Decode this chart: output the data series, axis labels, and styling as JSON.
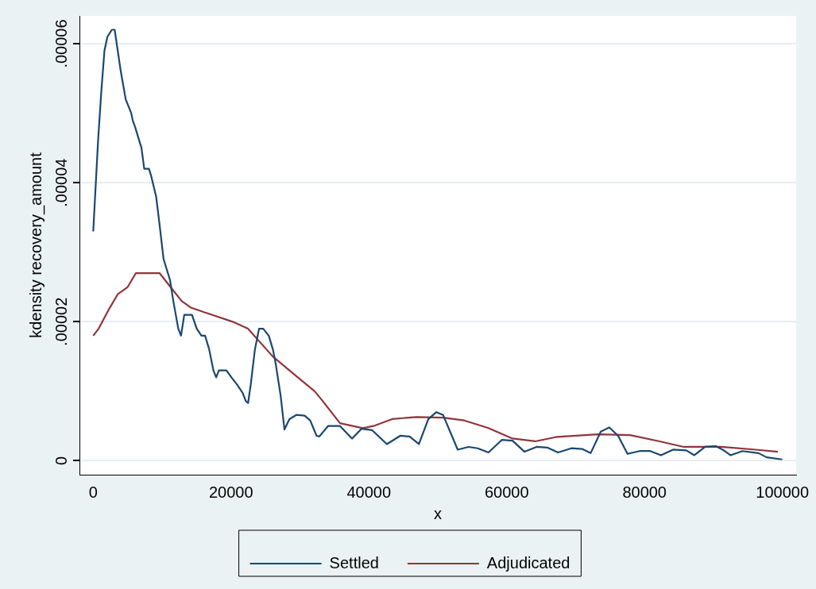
{
  "chart_data": {
    "type": "line",
    "xlabel": "x",
    "ylabel": "kdensity recovery_amount",
    "xlim": [
      -2000,
      102000
    ],
    "xticks": [
      0,
      20000,
      40000,
      60000,
      80000,
      100000
    ],
    "ylim": [
      -2e-06,
      6.4e-05
    ],
    "yticks": [
      0,
      {
        "value": 2e-05,
        "label": ".00002"
      },
      {
        "value": 4e-05,
        "label": ".00004"
      },
      {
        "value": 6e-05,
        "label": ".00006"
      }
    ],
    "grid": "y",
    "legend": "bottom",
    "marker": "none",
    "line_style": "solid",
    "series": [
      {
        "name": "Settled",
        "color": "#1a476f",
        "x": [
          0,
          700,
          1160,
          1630,
          2060,
          2700,
          3110,
          4000,
          4710,
          5520,
          5720,
          6080,
          7000,
          7400,
          7680,
          8080,
          8400,
          9130,
          9620,
          10210,
          11140,
          11620,
          12340,
          12740,
          13210,
          13940,
          14330,
          15020,
          15700,
          16230,
          16830,
          17440,
          17840,
          18240,
          18920,
          19330,
          20050,
          20840,
          21660,
          22130,
          22470,
          22860,
          23460,
          24060,
          24670,
          25470,
          26080,
          26470,
          27190,
          27750,
          28470,
          29470,
          30680,
          31480,
          32410,
          32810,
          34070,
          35810,
          37560,
          38920,
          40480,
          42610,
          44550,
          45900,
          47260,
          48630,
          49790,
          50760,
          52890,
          54450,
          55790,
          57350,
          59290,
          60840,
          62590,
          64340,
          65890,
          67440,
          69380,
          70930,
          72180,
          73650,
          74890,
          76170,
          77530,
          79280,
          80830,
          82380,
          84130,
          86060,
          87230,
          88790,
          90340,
          91500,
          92470,
          94220,
          96550,
          97720,
          99980
        ],
        "values": [
          3.3e-05,
          4.6e-05,
          5.3e-05,
          5.9e-05,
          6.1e-05,
          6.2e-05,
          6.2e-05,
          5.6e-05,
          5.2e-05,
          5e-05,
          4.9e-05,
          4.8e-05,
          4.5e-05,
          4.2e-05,
          4.2e-05,
          4.2e-05,
          4.1e-05,
          3.8e-05,
          3.4e-05,
          2.9e-05,
          2.6e-05,
          2.3e-05,
          1.9e-05,
          1.8e-05,
          2.1e-05,
          2.1e-05,
          2.1e-05,
          1.9e-05,
          1.8e-05,
          1.8e-05,
          1.6e-05,
          1.3e-05,
          1.2e-05,
          1.3e-05,
          1.3e-05,
          1.3e-05,
          1.2e-05,
          1.1e-05,
          9.8e-06,
          8.6e-06,
          8.3e-06,
          1.1e-05,
          1.6e-05,
          1.9e-05,
          1.9e-05,
          1.8e-05,
          1.6e-05,
          1.4e-05,
          9.4e-06,
          4.5e-06,
          6e-06,
          6.6e-06,
          6.5e-06,
          5.8e-06,
          3.6e-06,
          3.5e-06,
          5e-06,
          5e-06,
          3.2e-06,
          4.6e-06,
          4.4e-06,
          2.4e-06,
          3.6e-06,
          3.5e-06,
          2.4e-06,
          6e-06,
          7e-06,
          6.6e-06,
          1.6e-06,
          2e-06,
          1.8e-06,
          1.2e-06,
          3e-06,
          2.9e-06,
          1.3e-06,
          2e-06,
          1.9e-06,
          1.2e-06,
          1.8e-06,
          1.7e-06,
          1.1e-06,
          4.2e-06,
          4.8e-06,
          3.6e-06,
          1e-06,
          1.4e-06,
          1.4e-06,
          8e-07,
          1.6e-06,
          1.5e-06,
          8e-07,
          2e-06,
          2.1e-06,
          1.5e-06,
          8e-07,
          1.4e-06,
          1.1e-06,
          5e-07,
          2e-07
        ]
      },
      {
        "name": "Adjudicated",
        "color": "#90353b",
        "x": [
          0,
          780,
          2390,
          3590,
          5000,
          6190,
          8010,
          9620,
          11210,
          12820,
          14230,
          17220,
          20240,
          22450,
          26060,
          29680,
          32130,
          33290,
          35810,
          39120,
          40660,
          43380,
          46880,
          50760,
          53860,
          57350,
          60840,
          64150,
          67050,
          68220,
          73260,
          77910,
          82190,
          85680,
          91110,
          96160,
          99340
        ],
        "values": [
          1.8e-05,
          1.9e-05,
          2.2e-05,
          2.4e-05,
          2.5e-05,
          2.7e-05,
          2.7e-05,
          2.7e-05,
          2.5e-05,
          2.3e-05,
          2.2e-05,
          2.1e-05,
          2e-05,
          1.9e-05,
          1.5e-05,
          1.2e-05,
          1e-05,
          8.6e-06,
          5.4e-06,
          4.7e-06,
          5e-06,
          6e-06,
          6.3e-06,
          6.2e-06,
          5.8e-06,
          4.7e-06,
          3.2e-06,
          2.8e-06,
          3.4e-06,
          3.5e-06,
          3.8e-06,
          3.7e-06,
          2.8e-06,
          2e-06,
          2e-06,
          1.6e-06,
          1.3e-06
        ]
      }
    ]
  }
}
